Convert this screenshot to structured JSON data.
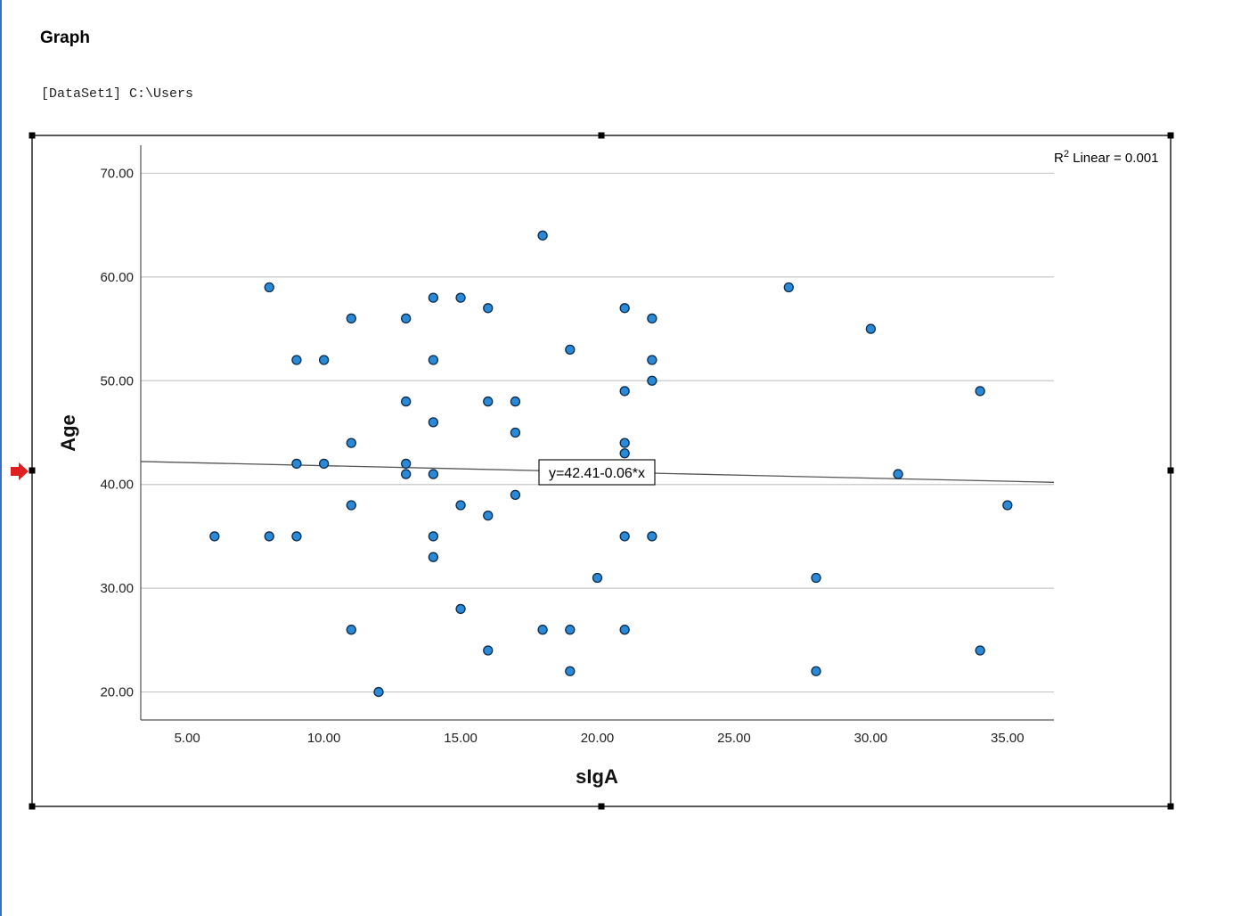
{
  "header": {
    "title": "Graph",
    "dataset": "[DataSet1] C:\\Users"
  },
  "colors": {
    "point_fill": "#2a8ad8",
    "point_stroke": "#0a2a4a",
    "grid": "#c8c8c8",
    "fit_line": "#555555",
    "frame": "#000000",
    "selection_arrow": "#e02020",
    "window_border": "#3a6fc8"
  },
  "chart_data": {
    "type": "scatter",
    "xlabel": "sIgA",
    "ylabel": "Age",
    "xlim": [
      3.3,
      36.7
    ],
    "ylim": [
      17.3,
      72.7
    ],
    "xticks": [
      5,
      10,
      15,
      20,
      25,
      30,
      35
    ],
    "xtick_labels": [
      "5.00",
      "10.00",
      "15.00",
      "20.00",
      "25.00",
      "30.00",
      "35.00"
    ],
    "yticks": [
      20,
      30,
      40,
      50,
      60,
      70
    ],
    "ytick_labels": [
      "20.00",
      "30.00",
      "40.00",
      "50.00",
      "60.00",
      "70.00"
    ],
    "grid": "horizontal",
    "r2_label": {
      "prefix": "R",
      "sup": "2",
      "suffix": " Linear = 0.001"
    },
    "fit": {
      "intercept": 42.41,
      "slope": -0.06,
      "equation": "y=42.41-0.06*x"
    },
    "points": [
      [
        6,
        35
      ],
      [
        8,
        59
      ],
      [
        8,
        35
      ],
      [
        9,
        52
      ],
      [
        9,
        42
      ],
      [
        9,
        35
      ],
      [
        10,
        52
      ],
      [
        10,
        42
      ],
      [
        11,
        56
      ],
      [
        11,
        44
      ],
      [
        11,
        38
      ],
      [
        11,
        26
      ],
      [
        12,
        20
      ],
      [
        13,
        56
      ],
      [
        13,
        48
      ],
      [
        13,
        42
      ],
      [
        13,
        41
      ],
      [
        14,
        58
      ],
      [
        14,
        52
      ],
      [
        14,
        46
      ],
      [
        14,
        41
      ],
      [
        14,
        35
      ],
      [
        14,
        33
      ],
      [
        15,
        58
      ],
      [
        15,
        38
      ],
      [
        15,
        28
      ],
      [
        16,
        57
      ],
      [
        16,
        48
      ],
      [
        16,
        37
      ],
      [
        16,
        24
      ],
      [
        17,
        48
      ],
      [
        17,
        45
      ],
      [
        17,
        39
      ],
      [
        18,
        64
      ],
      [
        18,
        26
      ],
      [
        19,
        53
      ],
      [
        19,
        26
      ],
      [
        19,
        22
      ],
      [
        20,
        31
      ],
      [
        21,
        57
      ],
      [
        21,
        49
      ],
      [
        21,
        44
      ],
      [
        21,
        43
      ],
      [
        21,
        35
      ],
      [
        21,
        26
      ],
      [
        22,
        56
      ],
      [
        22,
        52
      ],
      [
        22,
        50
      ],
      [
        22,
        35
      ],
      [
        27,
        59
      ],
      [
        28,
        31
      ],
      [
        28,
        22
      ],
      [
        30,
        55
      ],
      [
        31,
        41
      ],
      [
        34,
        49
      ],
      [
        34,
        24
      ],
      [
        35,
        38
      ]
    ]
  }
}
